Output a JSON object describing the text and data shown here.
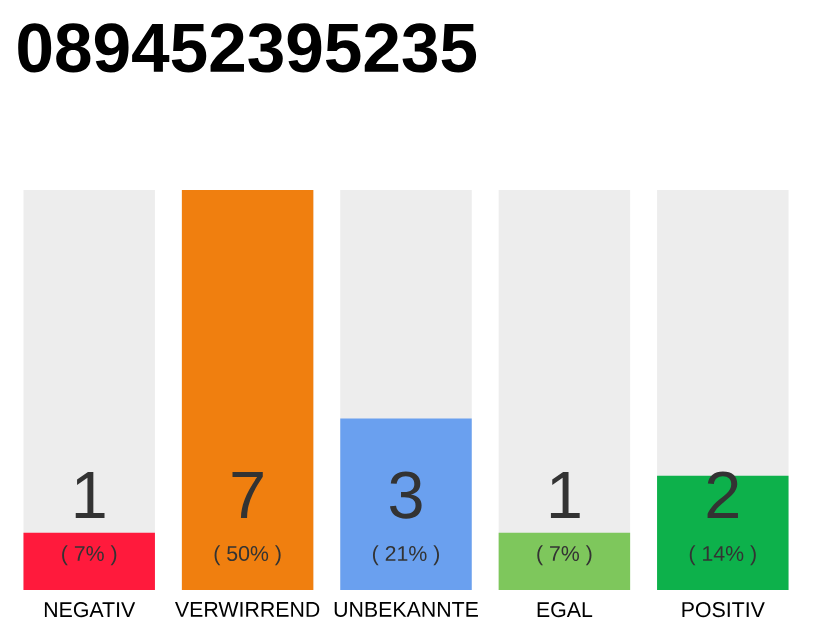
{
  "chart_data": {
    "type": "bar",
    "title": "089452395235",
    "categories": [
      "NEGATIV",
      "VERWIRREND",
      "UNBEKANNTE",
      "EGAL",
      "POSITIV"
    ],
    "values": [
      1,
      7,
      3,
      1,
      2
    ],
    "colors": [
      "#ff1a3c",
      "#f07f0f",
      "#6aa0ef",
      "#7ec75c",
      "#0db14b"
    ],
    "value_labels": [
      "1",
      "7",
      "3",
      "1",
      "2"
    ],
    "annotations": [
      "( 7% )",
      "( 50% )",
      "( 21% )",
      "( 7% )",
      "( 14% )"
    ]
  }
}
